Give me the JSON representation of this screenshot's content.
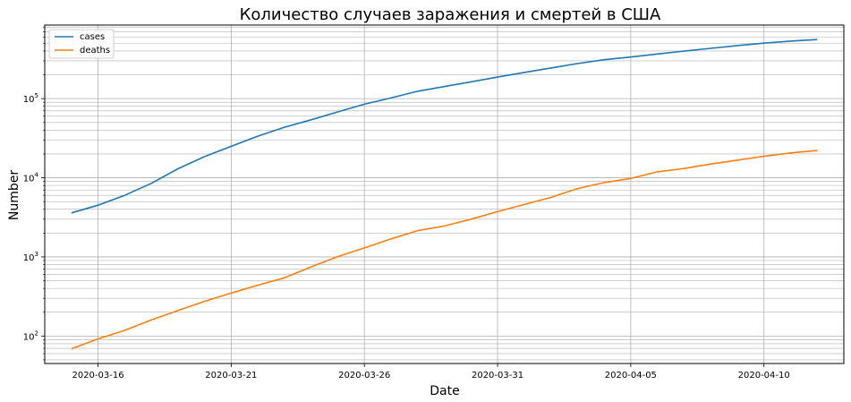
{
  "chart_data": {
    "type": "line",
    "title": "Количество случаев заражения и смертей в США",
    "xlabel": "Date",
    "ylabel": "Number",
    "yscale": "log",
    "ylim": [
      45,
      850000
    ],
    "xlim": [
      "2020-03-14",
      "2020-04-13"
    ],
    "grid": true,
    "grid_minor": true,
    "legend_position": "top-left",
    "x_ticks": [
      "2020-03-16",
      "2020-03-21",
      "2020-03-26",
      "2020-03-31",
      "2020-04-05",
      "2020-04-10"
    ],
    "y_ticks": [
      {
        "value": 100,
        "base": "10",
        "exp": "2"
      },
      {
        "value": 1000,
        "base": "10",
        "exp": "3"
      },
      {
        "value": 10000,
        "base": "10",
        "exp": "4"
      },
      {
        "value": 100000,
        "base": "10",
        "exp": "5"
      }
    ],
    "x": [
      "2020-03-15",
      "2020-03-16",
      "2020-03-17",
      "2020-03-18",
      "2020-03-19",
      "2020-03-20",
      "2020-03-21",
      "2020-03-22",
      "2020-03-23",
      "2020-03-24",
      "2020-03-25",
      "2020-03-26",
      "2020-03-27",
      "2020-03-28",
      "2020-03-29",
      "2020-03-30",
      "2020-03-31",
      "2020-04-01",
      "2020-04-02",
      "2020-04-03",
      "2020-04-04",
      "2020-04-05",
      "2020-04-06",
      "2020-04-07",
      "2020-04-08",
      "2020-04-09",
      "2020-04-10",
      "2020-04-11",
      "2020-04-12"
    ],
    "series": [
      {
        "name": "cases",
        "color": "#1f77b4",
        "values": [
          3600,
          4500,
          6000,
          8500,
          13000,
          18500,
          25000,
          33500,
          43500,
          54000,
          68000,
          85000,
          102000,
          124000,
          142000,
          163000,
          187000,
          214000,
          244000,
          277000,
          310000,
          335000,
          366000,
          398000,
          432000,
          468000,
          502000,
          533000,
          558000
        ]
      },
      {
        "name": "deaths",
        "color": "#ff7f0e",
        "values": [
          69,
          92,
          118,
          160,
          210,
          275,
          350,
          440,
          545,
          750,
          1010,
          1300,
          1690,
          2150,
          2460,
          3000,
          3730,
          4600,
          5650,
          7300,
          8700,
          9800,
          11900,
          13100,
          14900,
          16700,
          18700,
          20600,
          22100
        ]
      }
    ]
  }
}
